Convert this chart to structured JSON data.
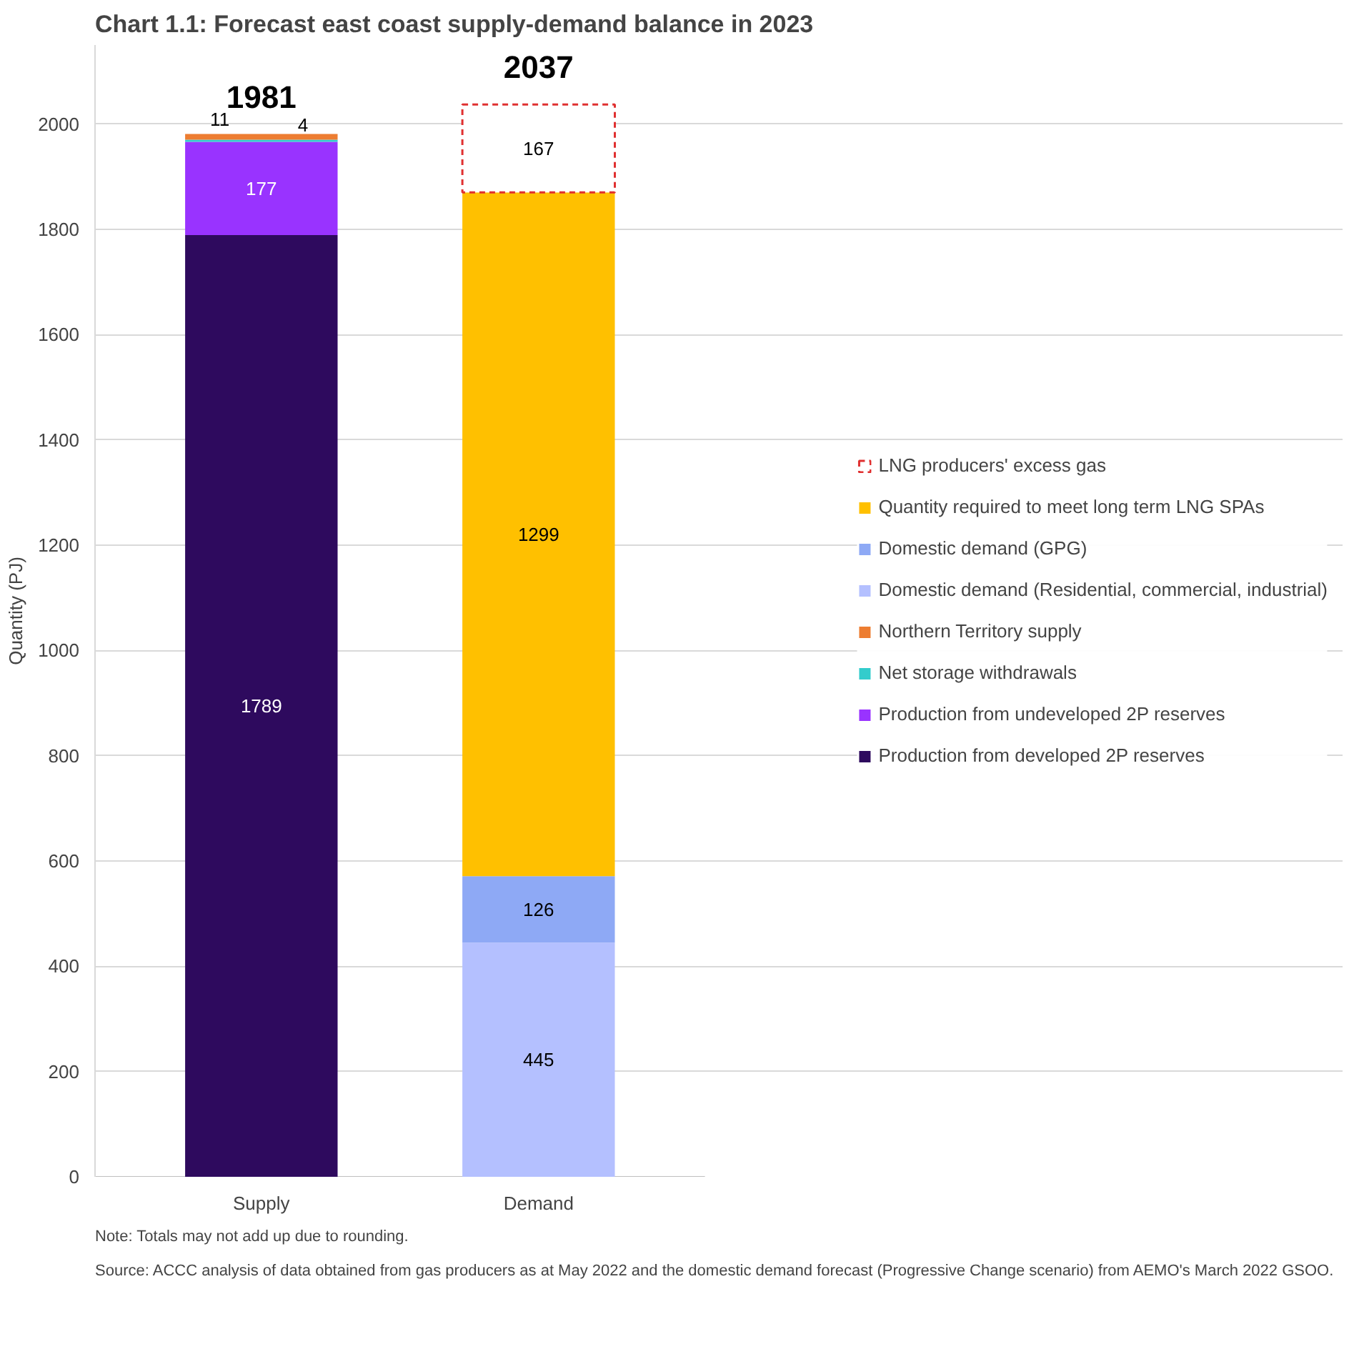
{
  "chart_data": {
    "type": "bar",
    "stacked": true,
    "title": "Chart 1.1:    Forecast east coast supply-demand balance in 2023",
    "ylabel": "Quantity (PJ)",
    "categories": [
      "Supply",
      "Demand"
    ],
    "series": [
      {
        "name": "Production from developed 2P reserves",
        "color": "#2e0a5e",
        "values": [
          1789,
          null
        ]
      },
      {
        "name": "Production from undeveloped 2P reserves",
        "color": "#9933ff",
        "values": [
          177,
          null
        ]
      },
      {
        "name": "Net storage withdrawals",
        "color": "#33cccc",
        "values": [
          4,
          null
        ]
      },
      {
        "name": "Northern Territory supply",
        "color": "#ed7d31",
        "values": [
          11,
          null
        ]
      },
      {
        "name": "Domestic demand (Residential, commercial, industrial)",
        "color": "#b4c0ff",
        "values": [
          null,
          445
        ]
      },
      {
        "name": "Domestic demand (GPG)",
        "color": "#8ea9f5",
        "values": [
          null,
          126
        ]
      },
      {
        "name": "Quantity required to meet long term LNG SPAs",
        "color": "#ffc000",
        "values": [
          null,
          1299
        ]
      },
      {
        "name": "LNG producers' excess gas",
        "color": "#e03030",
        "line_style": "dashed",
        "values": [
          null,
          167
        ]
      }
    ],
    "data_labels": true,
    "totals": [
      "1981",
      "2037"
    ],
    "ylim": [
      0,
      2150
    ],
    "yticks": [
      0,
      200,
      400,
      600,
      800,
      1000,
      1200,
      1400,
      1600,
      1800,
      2000
    ],
    "grid": "y",
    "legend": "right",
    "annotations": [
      "Source:   ACCC analysis of data obtained from gas producers as at May 2022 and the domestic demand forecast (Progressive Change scenario) from AEMO's March 2022 GSOO.",
      "Note:      Totals may not add up due to rounding."
    ]
  }
}
